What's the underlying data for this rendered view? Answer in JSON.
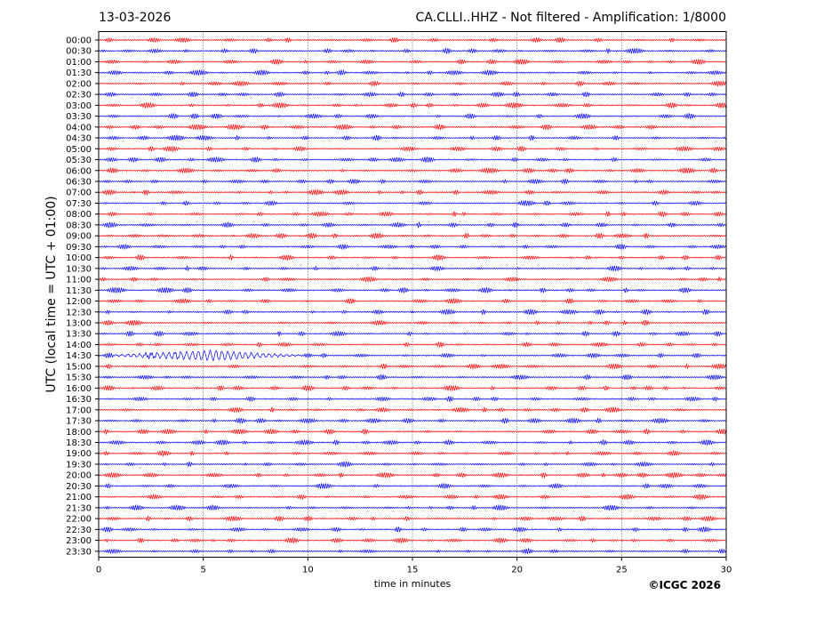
{
  "header": {
    "date": "13-03-2026",
    "title": "CA.CLLI..HHZ - Not filtered - Amplification: 1/8000"
  },
  "footer": {
    "copyright": "©ICGC 2026"
  },
  "colors": {
    "trace_a": "#ff0000",
    "trace_b": "#0000ff",
    "grid": "#000000"
  },
  "chart_data": {
    "type": "line",
    "title": "CA.CLLI..HHZ - Not filtered - Amplification: 1/8000",
    "subtitle": "13-03-2026",
    "xlabel": "time in minutes",
    "ylabel": "UTC (local time = UTC + 01:00)",
    "xlim": [
      0,
      30
    ],
    "x_ticks": [
      "0",
      "5",
      "10",
      "15",
      "20",
      "25",
      "30"
    ],
    "grid": "vertical dotted at every 5 minutes",
    "row_labels": [
      "00:00",
      "00:30",
      "01:00",
      "01:30",
      "02:00",
      "02:30",
      "03:00",
      "03:30",
      "04:00",
      "04:30",
      "05:00",
      "05:30",
      "06:00",
      "06:30",
      "07:00",
      "07:30",
      "08:00",
      "08:30",
      "09:00",
      "09:30",
      "10:00",
      "10:30",
      "11:00",
      "11:30",
      "12:00",
      "12:30",
      "13:00",
      "13:30",
      "14:00",
      "14:30",
      "15:00",
      "15:30",
      "16:00",
      "16:30",
      "17:00",
      "17:30",
      "18:00",
      "18:30",
      "19:00",
      "19:30",
      "20:00",
      "20:30",
      "21:00",
      "21:30",
      "22:00",
      "22:30",
      "23:00",
      "23:30"
    ],
    "row_colors": "alternating red (even rows) and blue (odd rows)",
    "events": [
      {
        "row": "14:30",
        "start_minute": 0.2,
        "peak_minute": 5.5,
        "end_minute": 10.5,
        "description": "visible larger-amplitude oscillation"
      }
    ]
  }
}
